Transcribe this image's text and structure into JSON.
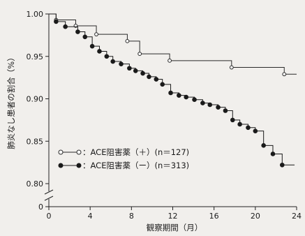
{
  "chart_data": {
    "type": "line",
    "step": true,
    "xlabel": "観察期間（月）",
    "ylabel": "肺炎なし患者の割合（%）",
    "xlim": [
      0,
      24
    ],
    "ylim": [
      0.8,
      1.0
    ],
    "axis_break": true,
    "x_ticks": [
      "0",
      "4",
      "8",
      "12",
      "16",
      "20",
      "24"
    ],
    "y_ticks": [
      "1.00",
      "0.95",
      "0.90",
      "0.85",
      "0.80",
      "0"
    ],
    "grid": false,
    "legend_position": "bottom-left",
    "series": [
      {
        "name": "：ACE阻害薬（＋）(n＝127)",
        "marker": "open-circle",
        "color": "#2a2a2a",
        "points": [
          [
            0,
            1.0
          ],
          [
            0.7,
            0.993
          ],
          [
            2.6,
            0.986
          ],
          [
            4.6,
            0.976
          ],
          [
            7.6,
            0.968
          ],
          [
            8.8,
            0.953
          ],
          [
            11.7,
            0.945
          ],
          [
            17.7,
            0.937
          ],
          [
            22.8,
            0.929
          ],
          [
            24.0,
            0.929
          ]
        ]
      },
      {
        "name": "：ACE阻害薬（ー）(n＝313)",
        "marker": "filled-circle",
        "color": "#1a1a1a",
        "points": [
          [
            0,
            1.0
          ],
          [
            0.7,
            0.991
          ],
          [
            1.6,
            0.985
          ],
          [
            2.8,
            0.979
          ],
          [
            3.5,
            0.973
          ],
          [
            4.2,
            0.962
          ],
          [
            4.9,
            0.956
          ],
          [
            5.6,
            0.95
          ],
          [
            6.2,
            0.944
          ],
          [
            7.0,
            0.941
          ],
          [
            7.8,
            0.936
          ],
          [
            8.4,
            0.933
          ],
          [
            9.1,
            0.93
          ],
          [
            9.7,
            0.926
          ],
          [
            10.4,
            0.923
          ],
          [
            11.0,
            0.917
          ],
          [
            11.8,
            0.907
          ],
          [
            12.6,
            0.904
          ],
          [
            13.3,
            0.902
          ],
          [
            14.1,
            0.899
          ],
          [
            14.9,
            0.895
          ],
          [
            15.6,
            0.893
          ],
          [
            16.4,
            0.89
          ],
          [
            17.1,
            0.886
          ],
          [
            17.8,
            0.875
          ],
          [
            18.5,
            0.87
          ],
          [
            19.3,
            0.866
          ],
          [
            20.0,
            0.862
          ],
          [
            20.8,
            0.845
          ],
          [
            21.7,
            0.835
          ],
          [
            22.6,
            0.822
          ],
          [
            23.8,
            0.822
          ]
        ]
      }
    ]
  }
}
